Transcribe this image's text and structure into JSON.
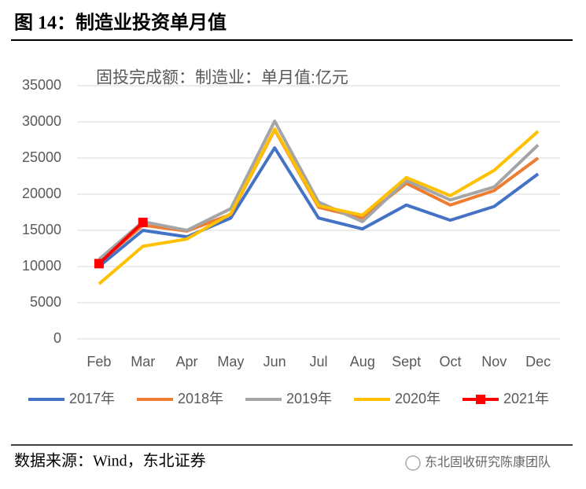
{
  "header": {
    "title": "图 14：制造业投资单月值"
  },
  "chart_data": {
    "type": "line",
    "title": "固投完成额：制造业：单月值:亿元",
    "categories": [
      "Feb",
      "Mar",
      "Apr",
      "May",
      "Jun",
      "Jul",
      "Aug",
      "Sept",
      "Oct",
      "Nov",
      "Dec"
    ],
    "series": [
      {
        "name": "2017年",
        "color": "#4472c4",
        "values": [
          10000,
          15000,
          14100,
          16700,
          26400,
          16700,
          15200,
          18500,
          16400,
          18300,
          22800
        ]
      },
      {
        "name": "2018年",
        "color": "#ed7d31",
        "values": [
          10500,
          15700,
          14900,
          17200,
          28900,
          18200,
          16700,
          21500,
          18500,
          20500,
          25000
        ]
      },
      {
        "name": "2019年",
        "color": "#a5a5a5",
        "values": [
          11000,
          16200,
          15000,
          18000,
          30100,
          18900,
          16200,
          21900,
          19200,
          21000,
          26800
        ]
      },
      {
        "name": "2020年",
        "color": "#ffc000",
        "values": [
          7600,
          12800,
          13800,
          17300,
          29000,
          18400,
          17100,
          22300,
          19800,
          23300,
          28700
        ]
      },
      {
        "name": "2021年",
        "color": "#ff0000",
        "marker": "square",
        "values": [
          10400,
          16100,
          null,
          null,
          null,
          null,
          null,
          null,
          null,
          null,
          null
        ]
      }
    ],
    "ylim": [
      0,
      35000
    ],
    "yticks": [
      0,
      5000,
      10000,
      15000,
      20000,
      25000,
      30000,
      35000
    ],
    "grid": true,
    "legend": "bottom"
  },
  "footer": {
    "source": "数据来源：Wind，东北证券",
    "watermark": "东北固收研究陈康团队"
  }
}
